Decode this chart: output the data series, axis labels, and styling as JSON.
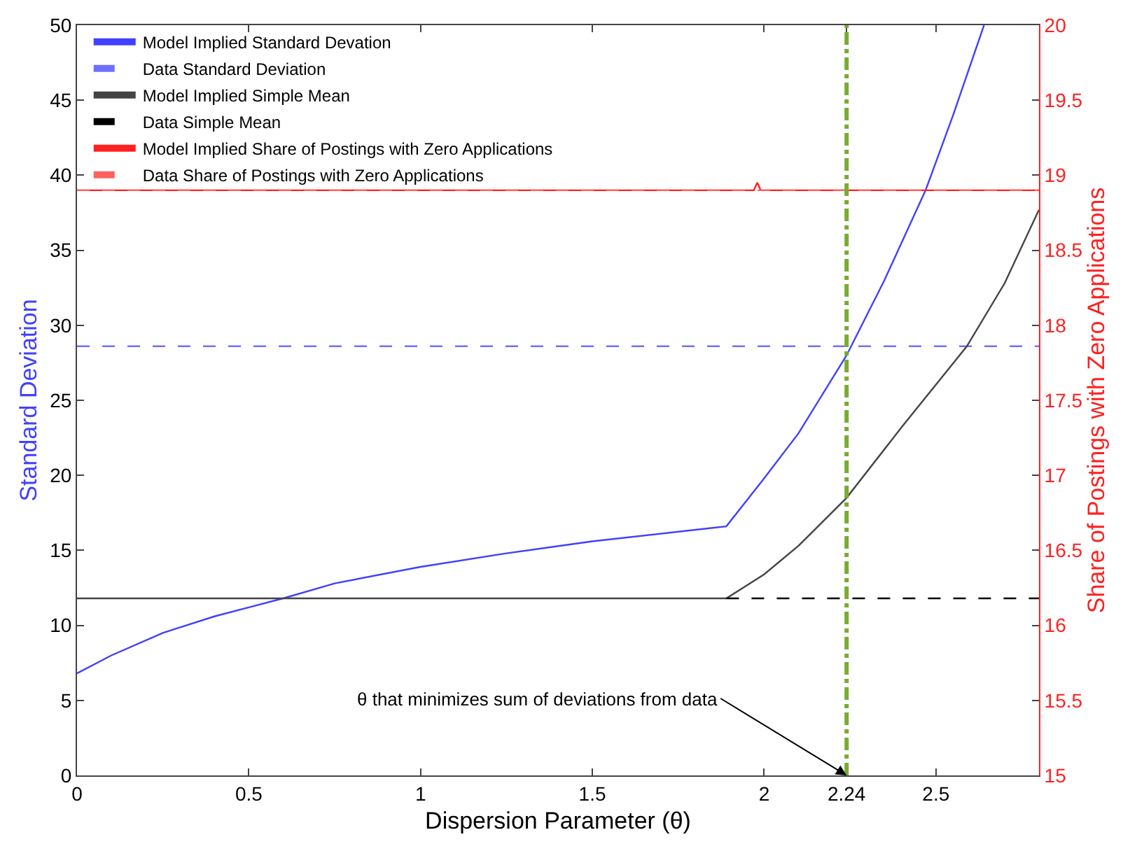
{
  "chart_data": {
    "type": "line",
    "xlabel": "Dispersion Parameter (θ)",
    "ylabel": "Standard Deviation",
    "y2label": "Share of Postings with Zero Applications",
    "xlim": [
      0,
      2.8
    ],
    "xticks": [
      0,
      0.5,
      1,
      1.5,
      2,
      2.24,
      2.5
    ],
    "ylim": [
      0,
      50
    ],
    "yticks": [
      0,
      5,
      10,
      15,
      20,
      25,
      30,
      35,
      40,
      45,
      50
    ],
    "y2lim": [
      15,
      20
    ],
    "y2ticks": [
      15,
      15.5,
      16,
      16.5,
      17,
      17.5,
      18,
      18.5,
      19,
      19.5,
      20
    ],
    "legend": "top left",
    "series": [
      {
        "name": "Model Implied Standard Devation",
        "color": "#4040ff",
        "line_style": "solid",
        "x": [
          0,
          0.1,
          0.25,
          0.4,
          0.5,
          0.6,
          0.75,
          1,
          1.25,
          1.5,
          1.89,
          2.0,
          2.1,
          2.24,
          2.35,
          2.47,
          2.55,
          2.64
        ],
        "values": [
          6.8,
          8.0,
          9.5,
          10.6,
          11.2,
          11.8,
          12.8,
          13.9,
          14.8,
          15.6,
          16.6,
          19.8,
          22.8,
          28,
          33,
          39,
          44,
          50
        ]
      },
      {
        "name": "Data Standard Deviation",
        "color": "#7070ff",
        "line_style": "dashed",
        "x": [
          0,
          2.8
        ],
        "values": [
          28.6,
          28.6
        ]
      },
      {
        "name": "Model Implied Simple Mean",
        "color": "#444444",
        "line_style": "solid",
        "x": [
          0,
          1.89,
          2.0,
          2.1,
          2.24,
          2.4,
          2.59,
          2.7,
          2.8
        ],
        "values": [
          11.8,
          11.8,
          13.4,
          15.3,
          18.5,
          23.2,
          28.6,
          32.8,
          37.7
        ]
      },
      {
        "name": "Data Simple Mean",
        "color": "#000000",
        "line_style": "dashed",
        "x": [
          1.89,
          2.8
        ],
        "values": [
          11.8,
          11.8
        ]
      },
      {
        "name": "Model Implied Share of Postings with Zero Applications",
        "color": "#ff2020",
        "line_style": "solid",
        "axis": "y2",
        "x": [
          0,
          1.97,
          1.98,
          1.99,
          2.8
        ],
        "values": [
          18.9,
          18.9,
          18.95,
          18.9,
          18.9
        ]
      },
      {
        "name": "Data Share of Postings with Zero Applications",
        "color": "#ff6060",
        "line_style": "dashed",
        "axis": "y2",
        "x": [
          0,
          2.8
        ],
        "values": [
          18.9,
          18.9
        ]
      }
    ],
    "ref_lines": [
      {
        "axis": "x",
        "value": 2.24,
        "color": "#77ac30",
        "line_style": "dashdot"
      }
    ],
    "annotations": [
      {
        "text": "θ that minimizes sum of deviations from data",
        "x": 2.24,
        "y": 0
      }
    ]
  }
}
